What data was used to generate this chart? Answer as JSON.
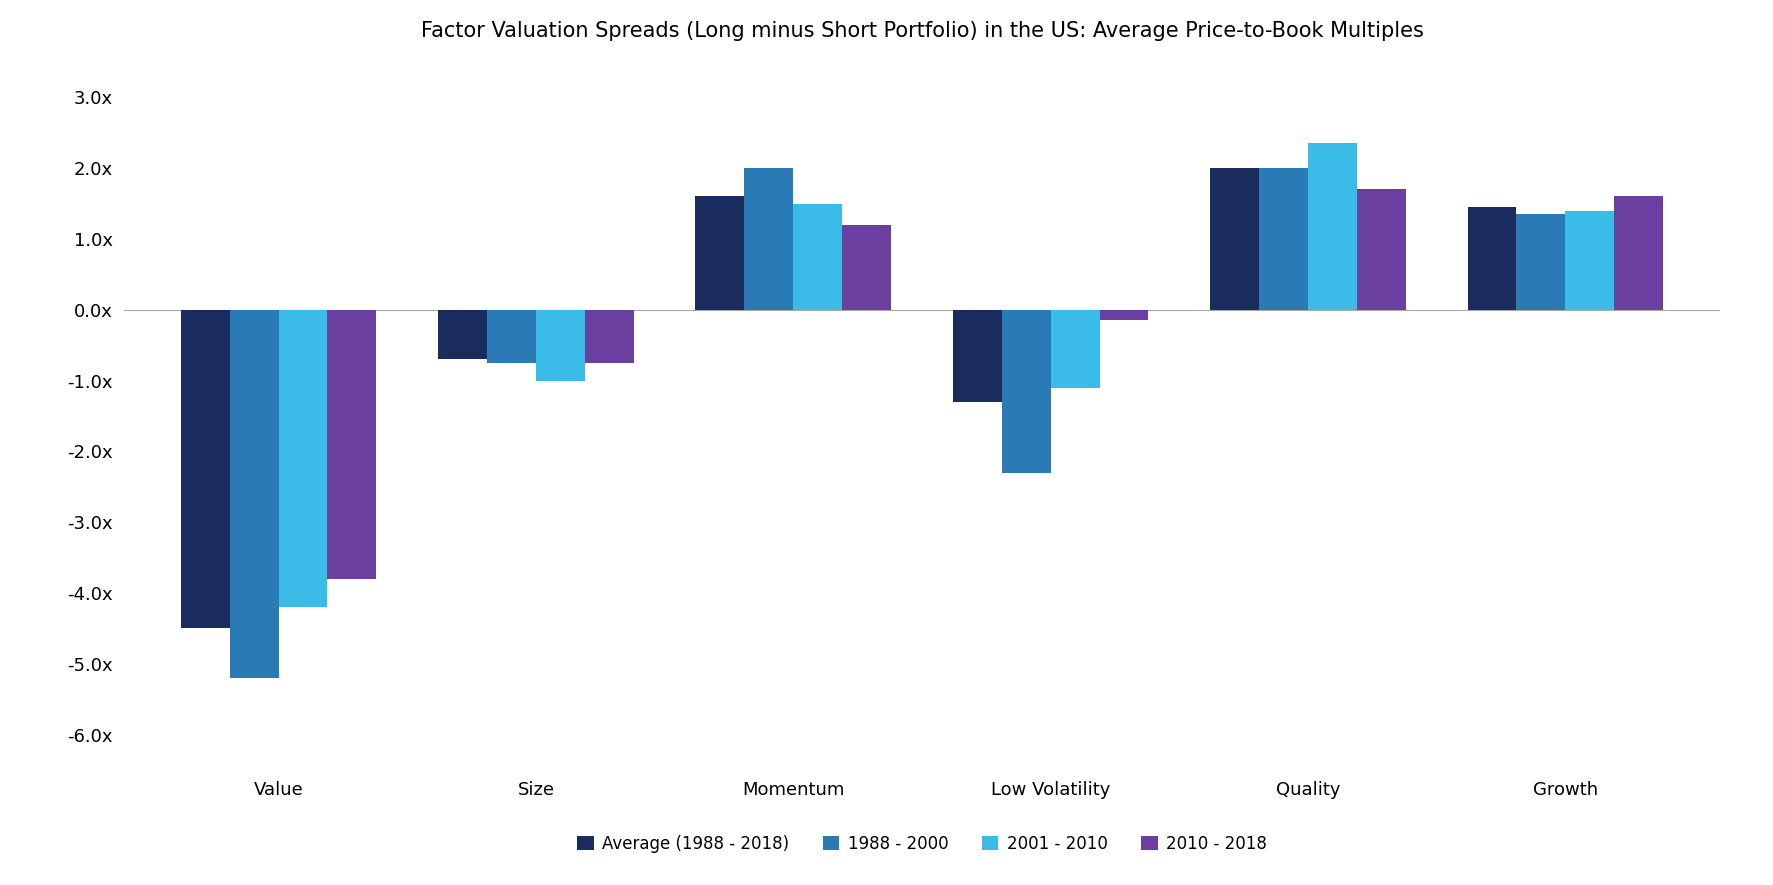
{
  "title": "Factor Valuation Spreads (Long minus Short Portfolio) in the US: Average Price-to-Book Multiples",
  "categories": [
    "Value",
    "Size",
    "Momentum",
    "Low Volatility",
    "Quality",
    "Growth"
  ],
  "series": [
    {
      "label": "Average (1988 - 2018)",
      "color": "#1a2b5e",
      "values": [
        -4.5,
        -0.7,
        1.6,
        -1.3,
        2.0,
        1.45
      ]
    },
    {
      "label": "1988 - 2000",
      "color": "#2a7ab5",
      "values": [
        -5.2,
        -0.75,
        2.0,
        -2.3,
        2.0,
        1.35
      ]
    },
    {
      "label": "2001 - 2010",
      "color": "#3bbce8",
      "values": [
        -4.2,
        -1.0,
        1.5,
        -1.1,
        2.35,
        1.4
      ]
    },
    {
      "label": "2010 - 2018",
      "color": "#6b3fa0",
      "values": [
        -3.8,
        -0.75,
        1.2,
        -0.15,
        1.7,
        1.6
      ]
    }
  ],
  "ylim": [
    -6.5,
    3.5
  ],
  "yticks": [
    -6.0,
    -5.0,
    -4.0,
    -3.0,
    -2.0,
    -1.0,
    0.0,
    1.0,
    2.0,
    3.0
  ],
  "background_color": "#ffffff",
  "zero_line_color": "#aaaaaa",
  "title_fontsize": 15,
  "tick_fontsize": 13,
  "legend_fontsize": 12,
  "bar_width": 0.19
}
